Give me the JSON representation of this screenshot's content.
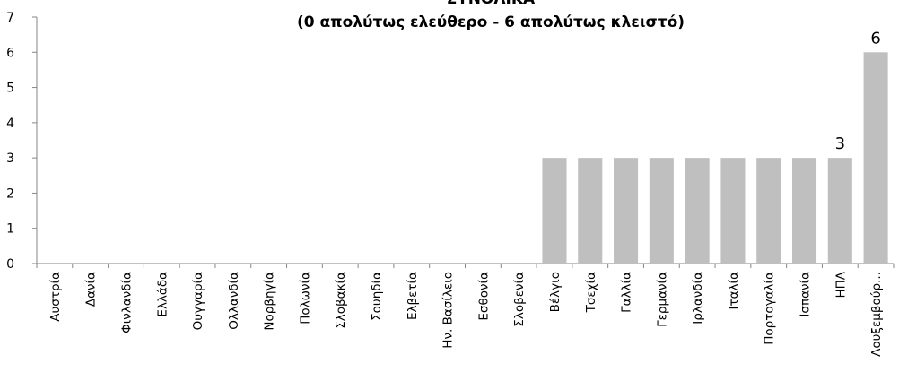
{
  "chart_data": {
    "type": "bar",
    "title_line1": "ΣΥΝΟΛΙΚΑ",
    "title_line2": "(0 απολύτως ελεύθερο - 6 απολύτως κλειστό)",
    "xlabel": "",
    "ylabel": "",
    "ylim": [
      0,
      7
    ],
    "yticks": [
      0,
      1,
      2,
      3,
      4,
      5,
      6,
      7
    ],
    "categories": [
      "Αυστρία",
      "Δανία",
      "Φινλανδία",
      "Ελλάδα",
      "Ουγγαρία",
      "Ολλανδία",
      "Νορβηγία",
      "Πολωνία",
      "Σλοβακία",
      "Σουηδία",
      "Ελβετία",
      "Ην. Βασίλειο",
      "Εσθονία",
      "Σλοβενία",
      "Βέλγιο",
      "Τσεχία",
      "Γαλλία",
      "Γερμανία",
      "Ιρλανδία",
      "Ιταλία",
      "Πορτογαλία",
      "Ισπανία",
      "ΗΠΑ",
      "Λουξεμβούρ..."
    ],
    "values": [
      0,
      0,
      0,
      0,
      0,
      0,
      0,
      0,
      0,
      0,
      0,
      0,
      0,
      0,
      3,
      3,
      3,
      3,
      3,
      3,
      3,
      3,
      3,
      6
    ],
    "data_labels": [
      {
        "index": 22,
        "text": "3"
      },
      {
        "index": 23,
        "text": "6"
      }
    ],
    "grid": false,
    "legend": "none",
    "colors": {
      "bar": "#bfbfbf",
      "axis": "#868686",
      "text": "#000000"
    }
  }
}
